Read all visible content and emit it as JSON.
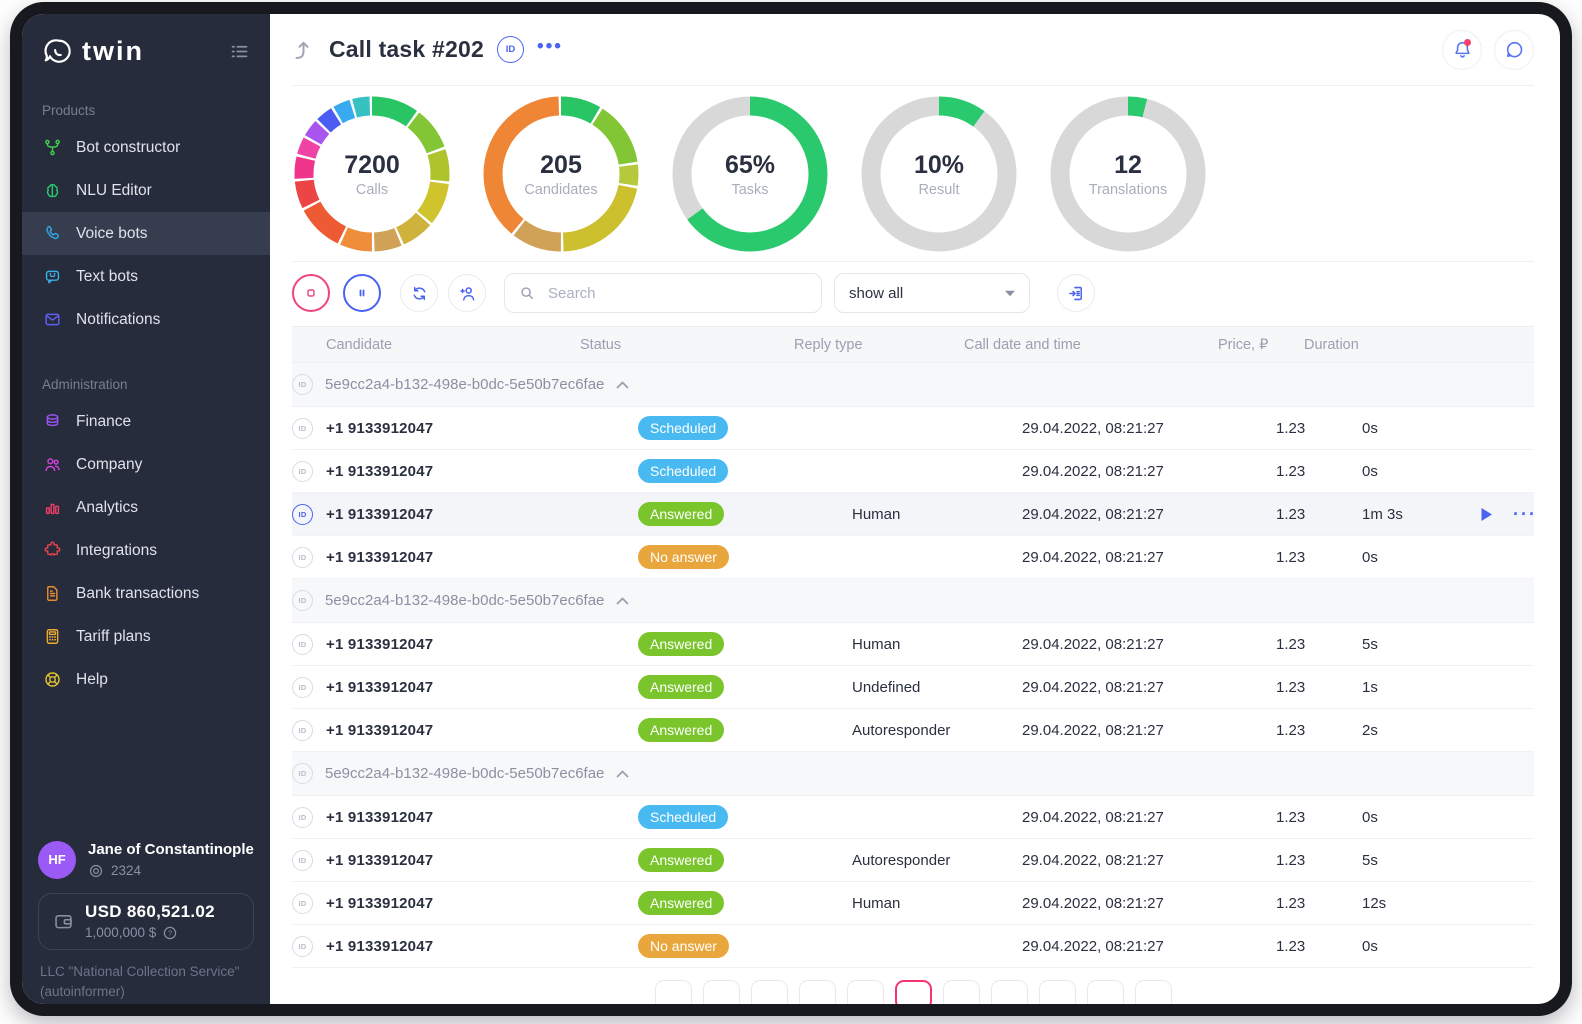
{
  "app": {
    "brand": "twin"
  },
  "header": {
    "title": "Call task #202",
    "id_badge": "ID"
  },
  "sidebar": {
    "sections": [
      {
        "label": "Products",
        "items": [
          {
            "label": "Bot constructor",
            "icon": "bot-constructor-icon",
            "color": "#3ecf4a",
            "active": false
          },
          {
            "label": "NLU Editor",
            "icon": "brain-icon",
            "color": "#27c96e",
            "active": false
          },
          {
            "label": "Voice bots",
            "icon": "phone-icon",
            "color": "#31a5e0",
            "active": true
          },
          {
            "label": "Text bots",
            "icon": "chat-bot-icon",
            "color": "#38b1e8",
            "active": false
          },
          {
            "label": "Notifications",
            "icon": "mail-icon",
            "color": "#5f5ff2",
            "active": false
          }
        ]
      },
      {
        "label": "Administration",
        "items": [
          {
            "label": "Finance",
            "icon": "coins-icon",
            "color": "#9a52f2",
            "active": false
          },
          {
            "label": "Company",
            "icon": "people-icon",
            "color": "#d444dc",
            "active": false
          },
          {
            "label": "Analytics",
            "icon": "bar-chart-icon",
            "color": "#f23d68",
            "active": false
          },
          {
            "label": "Integrations",
            "icon": "puzzle-icon",
            "color": "#ea4348",
            "active": false
          },
          {
            "label": "Bank transactions",
            "icon": "document-icon",
            "color": "#eb8c2d",
            "active": false
          },
          {
            "label": "Tariff plans",
            "icon": "calculator-icon",
            "color": "#ecaa2f",
            "active": false
          },
          {
            "label": "Help",
            "icon": "lifebuoy-icon",
            "color": "#e3c32f",
            "active": false
          }
        ]
      }
    ],
    "user": {
      "initials": "HF",
      "name": "Jane of Constantinople",
      "id": "2324"
    },
    "balance": {
      "main": "USD 860,521.02",
      "secondary": "1,000,000 $"
    },
    "company": "LLC \"National Collection Service\" (autoinformer)"
  },
  "chart_data": [
    {
      "type": "donut",
      "value": "7200",
      "label": "Calls",
      "segments": [
        {
          "value": 10,
          "color": "#29c463"
        },
        {
          "value": 9,
          "color": "#82c636"
        },
        {
          "value": 7,
          "color": "#afc32c"
        },
        {
          "value": 9,
          "color": "#cfc32e"
        },
        {
          "value": 7,
          "color": "#cfb23c"
        },
        {
          "value": 6,
          "color": "#cfa257"
        },
        {
          "value": 7,
          "color": "#ef8e3a"
        },
        {
          "value": 10,
          "color": "#ee5a33"
        },
        {
          "value": 6,
          "color": "#ec4545"
        },
        {
          "value": 5,
          "color": "#f0368c"
        },
        {
          "value": 4,
          "color": "#ef43a6"
        },
        {
          "value": 4,
          "color": "#a855f0"
        },
        {
          "value": 4,
          "color": "#4a5cf2"
        },
        {
          "value": 4,
          "color": "#38aaf0"
        },
        {
          "value": 4,
          "color": "#36c2c2"
        }
      ]
    },
    {
      "type": "donut",
      "value": "205",
      "label": "Candidates",
      "segments": [
        {
          "value": 9,
          "color": "#29c463"
        },
        {
          "value": 14,
          "color": "#82c636"
        },
        {
          "value": 5,
          "color": "#b4ca3c"
        },
        {
          "value": 22,
          "color": "#cdc02f"
        },
        {
          "value": 11,
          "color": "#cfa257"
        },
        {
          "value": 39,
          "color": "#ef8636"
        }
      ]
    },
    {
      "type": "donut",
      "value": "65%",
      "label": "Tasks",
      "segments": [
        {
          "value": 65,
          "color": "#2bc96d"
        },
        {
          "value": 35,
          "color": "#d8d8d8"
        }
      ]
    },
    {
      "type": "donut",
      "value": "10%",
      "label": "Result",
      "segments": [
        {
          "value": 10,
          "color": "#2bc96d"
        },
        {
          "value": 90,
          "color": "#d8d8d8"
        }
      ]
    },
    {
      "type": "donut",
      "value": "12",
      "label": "Translations",
      "segments": [
        {
          "value": 4,
          "color": "#2bc96d"
        },
        {
          "value": 96,
          "color": "#d8d8d8"
        }
      ]
    }
  ],
  "toolbar": {
    "search_placeholder": "Search",
    "filter_value": "show all"
  },
  "table": {
    "columns": [
      "Candidate",
      "Status",
      "Reply type",
      "Call date and time",
      "Price, ₽",
      "Duration"
    ],
    "status_colors": {
      "Scheduled": "#49b9f2",
      "Answered": "#7ac42c",
      "No answer": "#e9a63c"
    },
    "groups": [
      {
        "id": "5e9cc2a4-b132-498e-b0dc-5e50b7ec6fae",
        "rows": [
          {
            "phone": "+1 9133912047",
            "status": "Scheduled",
            "reply": "",
            "date": "29.04.2022, 08:21:27",
            "price": "1.23",
            "duration": "0s",
            "selected": false
          },
          {
            "phone": "+1 9133912047",
            "status": "Scheduled",
            "reply": "",
            "date": "29.04.2022, 08:21:27",
            "price": "1.23",
            "duration": "0s",
            "selected": false
          },
          {
            "phone": "+1 9133912047",
            "status": "Answered",
            "reply": "Human",
            "date": "29.04.2022, 08:21:27",
            "price": "1.23",
            "duration": "1m 3s",
            "selected": true
          },
          {
            "phone": "+1 9133912047",
            "status": "No answer",
            "reply": "",
            "date": "29.04.2022, 08:21:27",
            "price": "1.23",
            "duration": "0s",
            "selected": false
          }
        ]
      },
      {
        "id": "5e9cc2a4-b132-498e-b0dc-5e50b7ec6fae",
        "rows": [
          {
            "phone": "+1 9133912047",
            "status": "Answered",
            "reply": "Human",
            "date": "29.04.2022, 08:21:27",
            "price": "1.23",
            "duration": "5s",
            "selected": false
          },
          {
            "phone": "+1 9133912047",
            "status": "Answered",
            "reply": "Undefined",
            "date": "29.04.2022, 08:21:27",
            "price": "1.23",
            "duration": "1s",
            "selected": false
          },
          {
            "phone": "+1 9133912047",
            "status": "Answered",
            "reply": "Autoresponder",
            "date": "29.04.2022, 08:21:27",
            "price": "1.23",
            "duration": "2s",
            "selected": false
          }
        ]
      },
      {
        "id": "5e9cc2a4-b132-498e-b0dc-5e50b7ec6fae",
        "rows": [
          {
            "phone": "+1 9133912047",
            "status": "Scheduled",
            "reply": "",
            "date": "29.04.2022, 08:21:27",
            "price": "1.23",
            "duration": "0s",
            "selected": false
          },
          {
            "phone": "+1 9133912047",
            "status": "Answered",
            "reply": "Autoresponder",
            "date": "29.04.2022, 08:21:27",
            "price": "1.23",
            "duration": "5s",
            "selected": false
          },
          {
            "phone": "+1 9133912047",
            "status": "Answered",
            "reply": "Human",
            "date": "29.04.2022, 08:21:27",
            "price": "1.23",
            "duration": "12s",
            "selected": false
          },
          {
            "phone": "+1 9133912047",
            "status": "No answer",
            "reply": "",
            "date": "29.04.2022, 08:21:27",
            "price": "1.23",
            "duration": "0s",
            "selected": false
          }
        ]
      }
    ]
  },
  "pagination": {
    "count": 11,
    "active_index": 5
  }
}
